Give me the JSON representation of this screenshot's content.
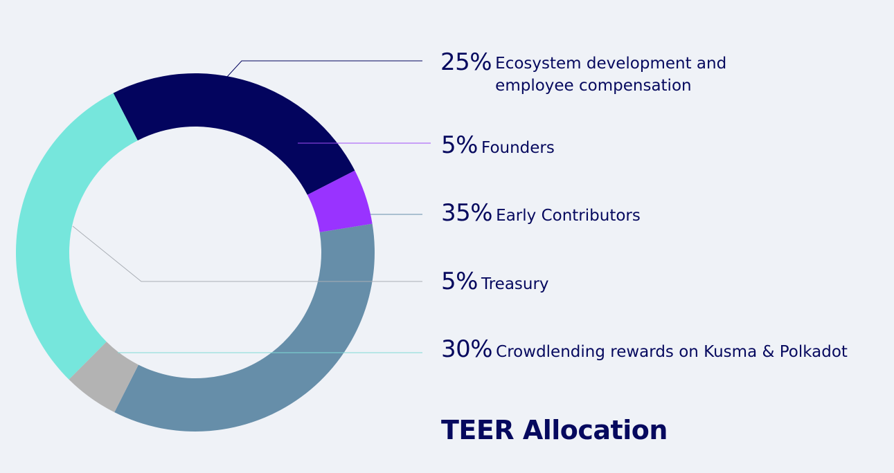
{
  "chart_data": {
    "type": "pie",
    "title": "TEER Allocation",
    "slices": [
      {
        "pct_label": "25%",
        "label_lines": [
          "Ecosystem development and",
          "employee compensation"
        ],
        "value": 25,
        "color": "#03045e",
        "leader_color": "#03045e"
      },
      {
        "pct_label": "5%",
        "label_lines": [
          "Founders"
        ],
        "value": 5,
        "color": "#9933ff",
        "leader_color": "#a24df7"
      },
      {
        "pct_label": "35%",
        "label_lines": [
          "Early Contributors"
        ],
        "value": 35,
        "color": "#668ea9",
        "leader_color": "#668ea9"
      },
      {
        "pct_label": "5%",
        "label_lines": [
          "Treasury"
        ],
        "value": 5,
        "color": "#b3b3b3",
        "leader_color": "#a9aeb5"
      },
      {
        "pct_label": "30%",
        "label_lines": [
          "Crowdlending rewards on Kusma & Polkadot"
        ],
        "value": 30,
        "color": "#76e6dc",
        "leader_color": "#7fd9d6"
      }
    ]
  }
}
